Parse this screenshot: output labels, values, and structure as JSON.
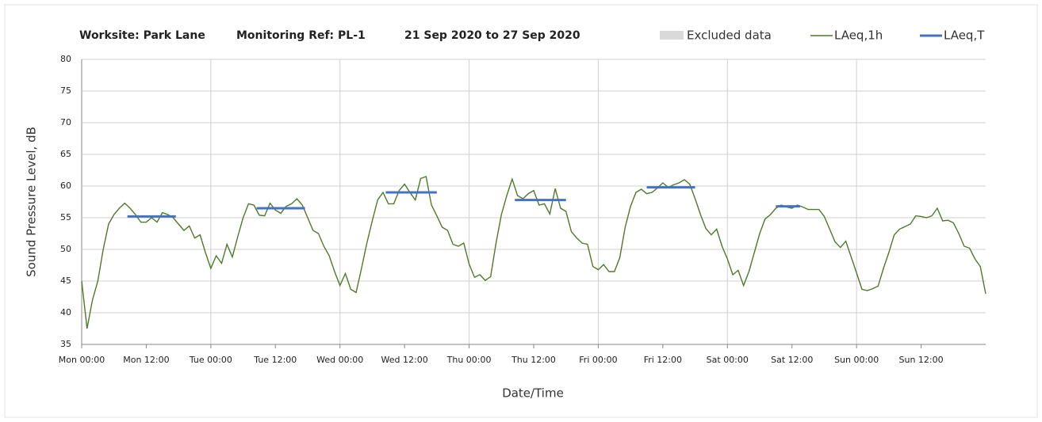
{
  "chart_data": {
    "type": "line",
    "title": [
      "Worksite: Park Lane",
      "Monitoring Ref: PL-1",
      "21 Sep 2020 to 27 Sep 2020"
    ],
    "xlabel": "Date/Time",
    "ylabel": "Sound Pressure Level, dB",
    "xlim": [
      0,
      168
    ],
    "ylim": [
      35,
      80
    ],
    "yticks": [
      35,
      40,
      45,
      50,
      55,
      60,
      65,
      70,
      75,
      80
    ],
    "xticks": [
      {
        "value": 0,
        "label": "Mon 00:00"
      },
      {
        "value": 12,
        "label": "Mon 12:00"
      },
      {
        "value": 24,
        "label": "Tue 00:00"
      },
      {
        "value": 36,
        "label": "Tue 12:00"
      },
      {
        "value": 48,
        "label": "Wed 00:00"
      },
      {
        "value": 60,
        "label": "Wed 12:00"
      },
      {
        "value": 72,
        "label": "Thu 00:00"
      },
      {
        "value": 84,
        "label": "Thu 12:00"
      },
      {
        "value": 96,
        "label": "Fri 00:00"
      },
      {
        "value": 108,
        "label": "Fri 12:00"
      },
      {
        "value": 120,
        "label": "Sat 00:00"
      },
      {
        "value": 132,
        "label": "Sat 12:00"
      },
      {
        "value": 144,
        "label": "Sun 00:00"
      },
      {
        "value": 156,
        "label": "Sun 12:00"
      }
    ],
    "grid": true,
    "x_grid_step": 24,
    "legend_extra": {
      "name": "Excluded data",
      "color": "#d9d9d9"
    },
    "series": [
      {
        "name": "LAeq,1h",
        "color": "#4f7a28",
        "x": [
          0,
          1,
          2,
          3,
          4,
          5,
          6,
          7,
          8,
          9,
          10,
          11,
          12,
          13,
          14,
          15,
          16,
          17,
          18,
          19,
          20,
          21,
          22,
          23,
          24,
          25,
          26,
          27,
          28,
          29,
          30,
          31,
          32,
          33,
          34,
          35,
          36,
          37,
          38,
          39,
          40,
          41,
          42,
          43,
          44,
          45,
          46,
          47,
          48,
          49,
          50,
          51,
          52,
          53,
          54,
          55,
          56,
          57,
          58,
          59,
          60,
          61,
          62,
          63,
          64,
          65,
          66,
          67,
          68,
          69,
          70,
          71,
          72,
          73,
          74,
          75,
          76,
          77,
          78,
          79,
          80,
          81,
          82,
          83,
          84,
          85,
          86,
          87,
          88,
          89,
          90,
          91,
          92,
          93,
          94,
          95,
          96,
          97,
          98,
          99,
          100,
          101,
          102,
          103,
          104,
          105,
          106,
          107,
          108,
          109,
          110,
          111,
          112,
          113,
          114,
          115,
          116,
          117,
          118,
          119,
          120,
          121,
          122,
          123,
          124,
          125,
          126,
          127,
          128,
          129,
          130,
          131,
          132,
          133,
          134,
          135,
          136,
          137,
          138,
          139,
          140,
          141,
          142,
          143,
          144,
          145,
          146,
          147,
          148,
          149,
          150,
          151,
          152,
          153,
          154,
          155,
          156,
          157,
          158,
          159,
          160,
          161,
          162,
          163,
          164,
          165,
          166,
          167,
          168
        ],
        "values": [
          45,
          37.5,
          42,
          45,
          50,
          54,
          55.5,
          56.5,
          57.3,
          56.5,
          55.5,
          54.3,
          54.3,
          55,
          54.3,
          55.8,
          55.5,
          55,
          54,
          53,
          53.7,
          51.8,
          52.3,
          49.5,
          47,
          49,
          47.8,
          50.8,
          48.8,
          52,
          55,
          57.2,
          57,
          55.4,
          55.3,
          57.3,
          56.2,
          55.7,
          56.8,
          57.2,
          58,
          57,
          55,
          53,
          52.5,
          50.5,
          49,
          46.5,
          44.3,
          46.2,
          43.7,
          43.2,
          47,
          51,
          54.5,
          57.8,
          59,
          57.2,
          57.2,
          59.3,
          60.3,
          59,
          57.8,
          61.2,
          61.5,
          57,
          55.3,
          53.5,
          53,
          50.8,
          50.5,
          51,
          47.7,
          45.6,
          46,
          45.1,
          45.7,
          51,
          55.5,
          58.5,
          61.1,
          58.5,
          58,
          58.8,
          59.3,
          57,
          57.2,
          55.6,
          59.6,
          56.5,
          56,
          52.8,
          51.8,
          51,
          50.8,
          47.3,
          46.8,
          47.6,
          46.5,
          46.5,
          48.7,
          53.5,
          56.8,
          59,
          59.5,
          58.8,
          59,
          59.7,
          60.5,
          59.8,
          60.2,
          60.5,
          61,
          60.3,
          58,
          55.5,
          53.3,
          52.3,
          53.2,
          50.5,
          48.5,
          46,
          46.7,
          44.3,
          46.5,
          49.5,
          52.5,
          54.8,
          55.5,
          56.5,
          57,
          56.7,
          56.5,
          57,
          56.7,
          56.3,
          56.3,
          56.3,
          55.2,
          53.2,
          51.2,
          50.3,
          51.3,
          48.8,
          46.3,
          43.7,
          43.5,
          43.8,
          44.2,
          47,
          49.5,
          52.3,
          53.2,
          53.6,
          54,
          55.3,
          55.2,
          55,
          55.3,
          56.5,
          54.5,
          54.6,
          54.2,
          52.5,
          50.5,
          50.2,
          48.5,
          47.3,
          43
        ]
      },
      {
        "name": "LAeq,T",
        "color": "#4472c4",
        "segments": [
          {
            "x": [
              8.5,
              17.5
            ],
            "value": 55.2
          },
          {
            "x": [
              32.5,
              41.5
            ],
            "value": 56.5
          },
          {
            "x": [
              56.5,
              66
            ],
            "value": 59
          },
          {
            "x": [
              80.5,
              90
            ],
            "value": 57.8
          },
          {
            "x": [
              105,
              114
            ],
            "value": 59.8
          },
          {
            "x": [
              129,
              133.5
            ],
            "value": 56.8
          }
        ]
      }
    ]
  }
}
